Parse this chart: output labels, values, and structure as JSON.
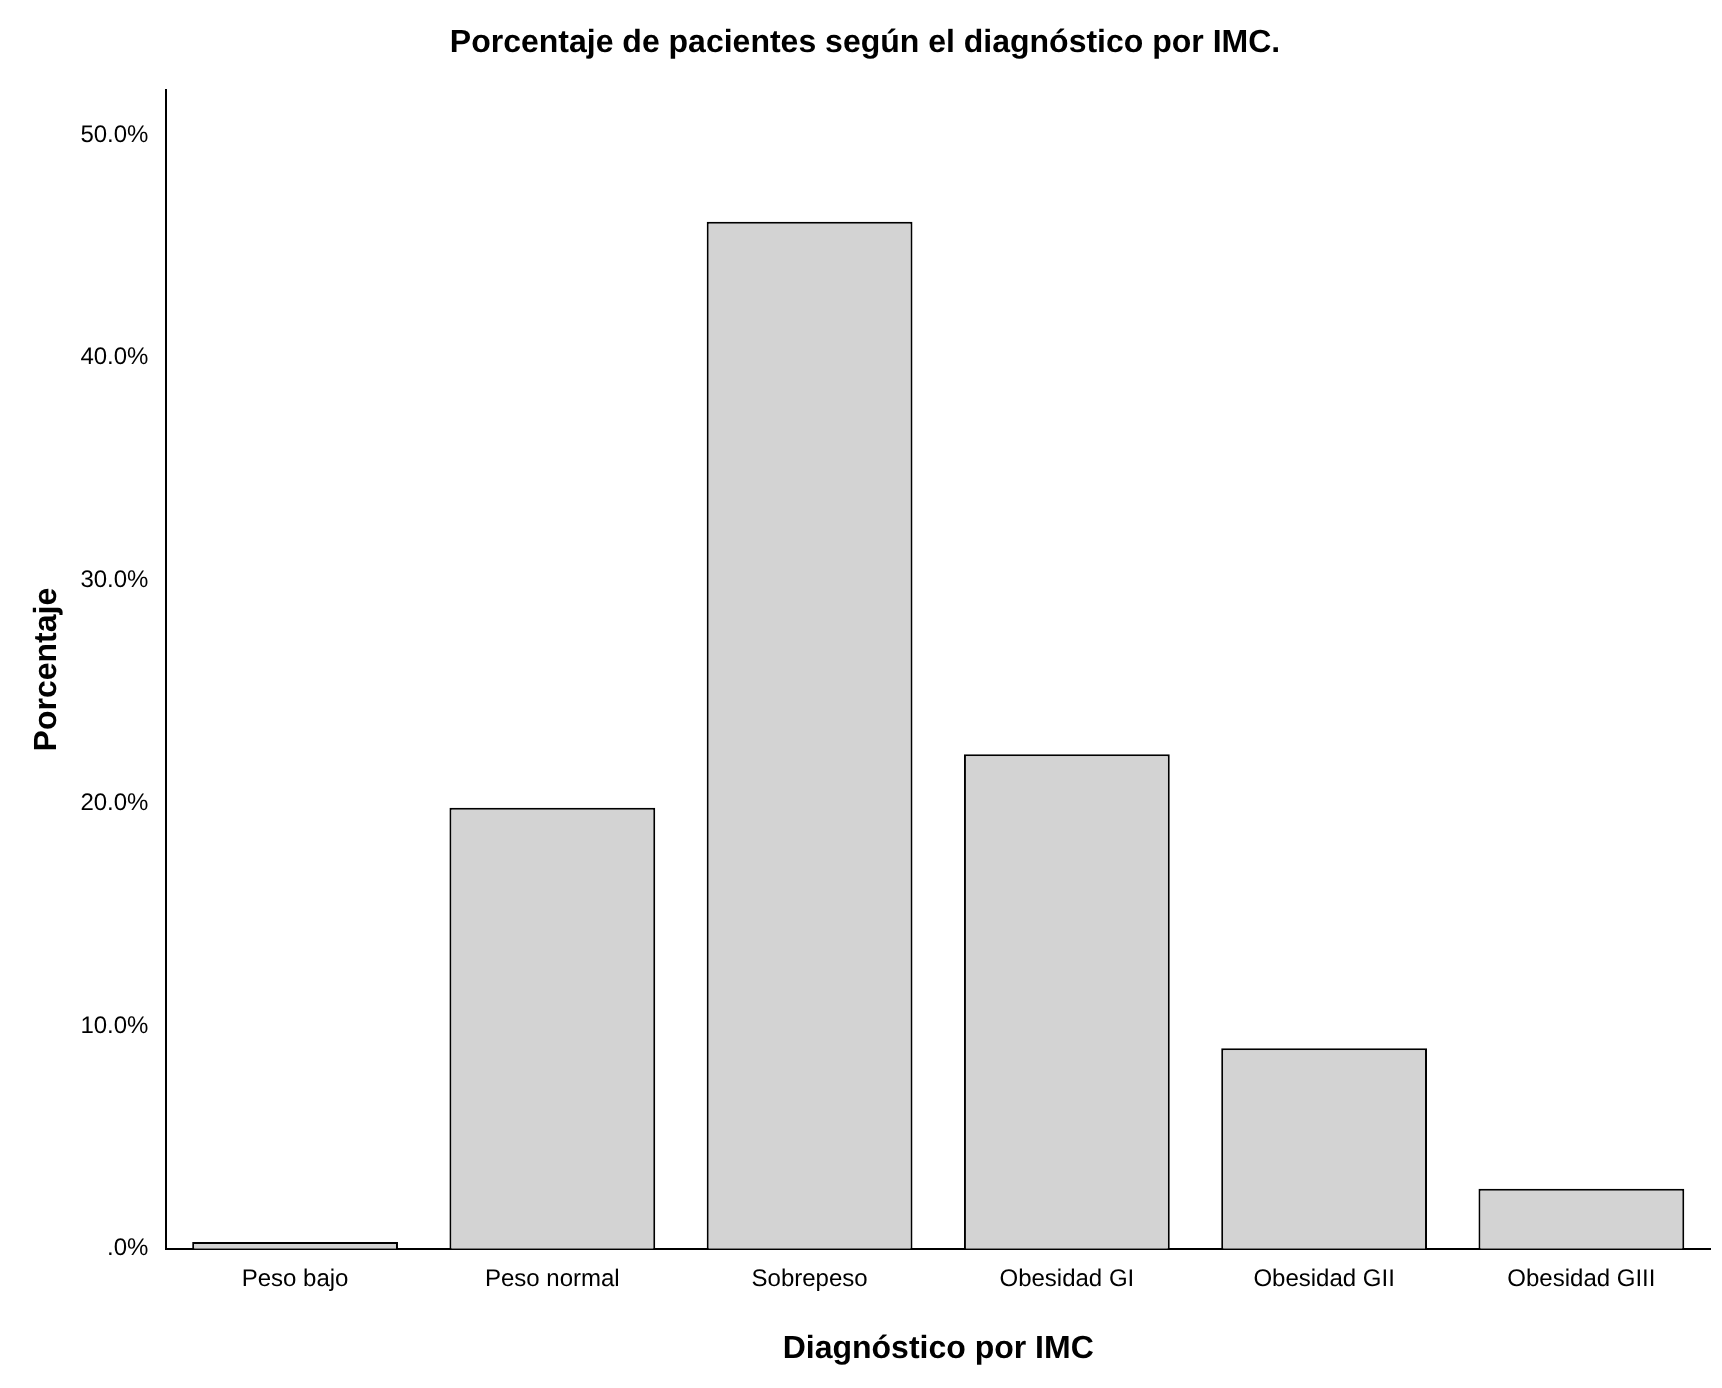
{
  "chart_data": {
    "type": "bar",
    "title": "Porcentaje de pacientes según el diagnóstico por IMC.",
    "xlabel": "Diagnóstico por IMC",
    "ylabel": "Porcentaje",
    "categories": [
      "Peso bajo",
      "Peso normal",
      "Sobrepeso",
      "Obesidad GI",
      "Obesidad GII",
      "Obesidad GIII"
    ],
    "values": [
      0.3,
      19.8,
      46.1,
      22.2,
      9.0,
      2.7
    ],
    "color": "#d3d3d3",
    "ylim": [
      0,
      52
    ],
    "yticks": [
      {
        "value": 0,
        "label": ".0%"
      },
      {
        "value": 10,
        "label": "10.0%"
      },
      {
        "value": 20,
        "label": "20.0%"
      },
      {
        "value": 30,
        "label": "30.0%"
      },
      {
        "value": 40,
        "label": "40.0%"
      },
      {
        "value": 50,
        "label": "50.0%"
      }
    ],
    "grid": false,
    "legend": false
  }
}
